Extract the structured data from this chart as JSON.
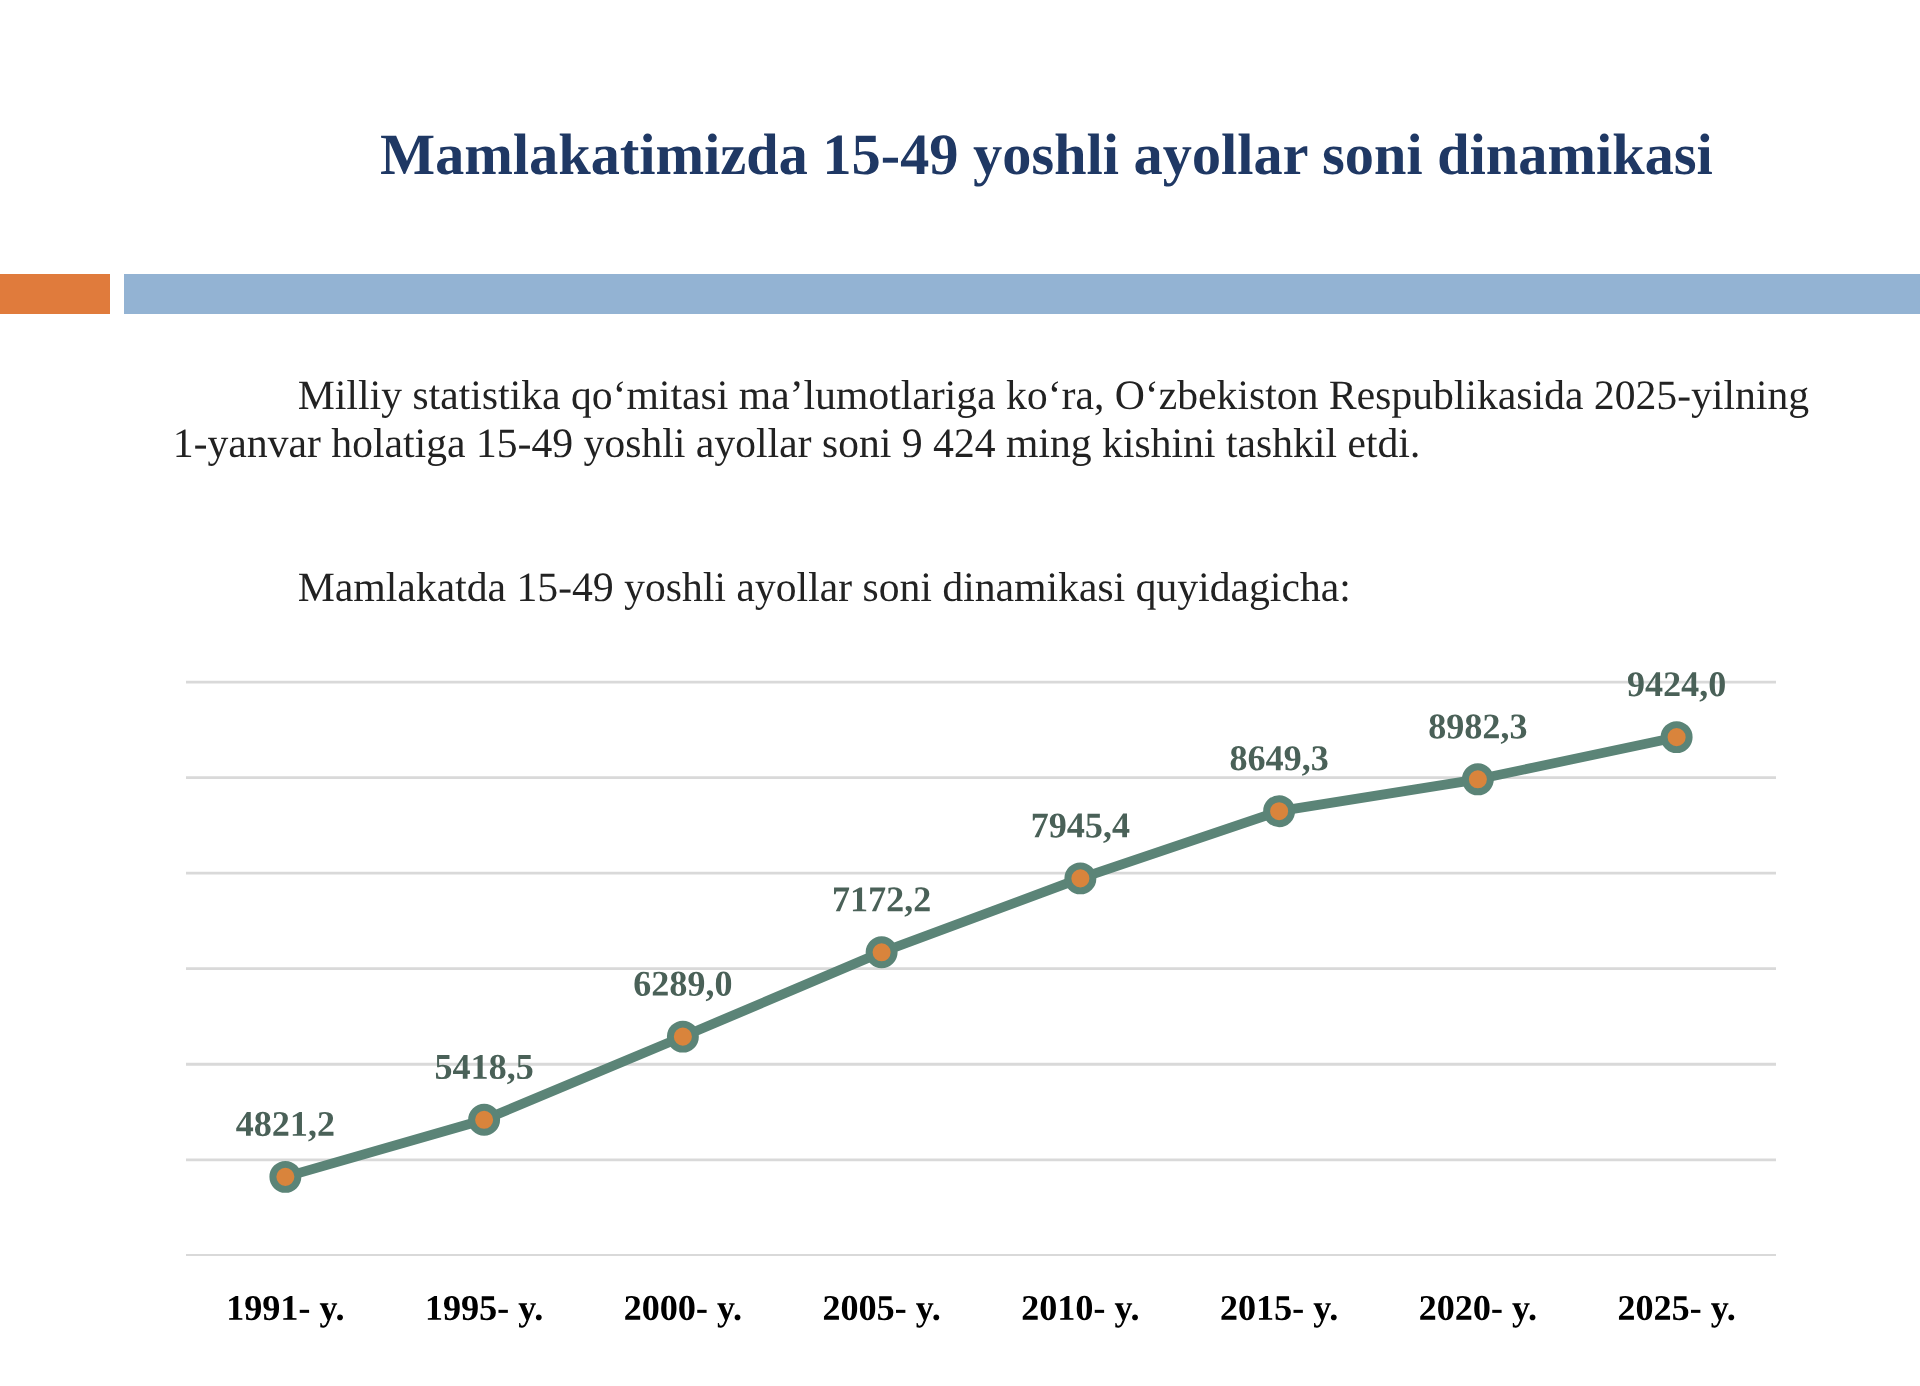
{
  "chart_data": {
    "type": "line",
    "title": "Mamlakatimizda 15-49 yoshli ayollar soni dinamikasi",
    "annotations": [
      "Milliy statistika qoʻmitasi maʼlumotlariga koʻra, Oʻzbekiston Respublikasida 2025-yilning 1-yanvar holatiga 15-49 yoshli ayollar soni 9 424 ming kishini tashkil etdi.",
      "Mamlakatda 15-49 yoshli ayollar soni dinamikasi quyidagicha:"
    ],
    "categories": [
      "1991- y.",
      "1995- y.",
      "2000- y.",
      "2005- y.",
      "2010- y.",
      "2015- y.",
      "2020- y.",
      "2025- y."
    ],
    "series": [
      {
        "color": "#5b8477",
        "values": [
          4821.2,
          5418.5,
          6289.0,
          7172.2,
          7945.4,
          8649.3,
          8982.3,
          9424.0
        ],
        "value_labels": [
          "4821,2",
          "5418,5",
          "6289,0",
          "7172,2",
          "7945,4",
          "8649,3",
          "8982,3",
          "9424,0"
        ]
      }
    ],
    "grid": "y",
    "marker": "circle",
    "line_style": "solid",
    "tick_labels": "x"
  }
}
